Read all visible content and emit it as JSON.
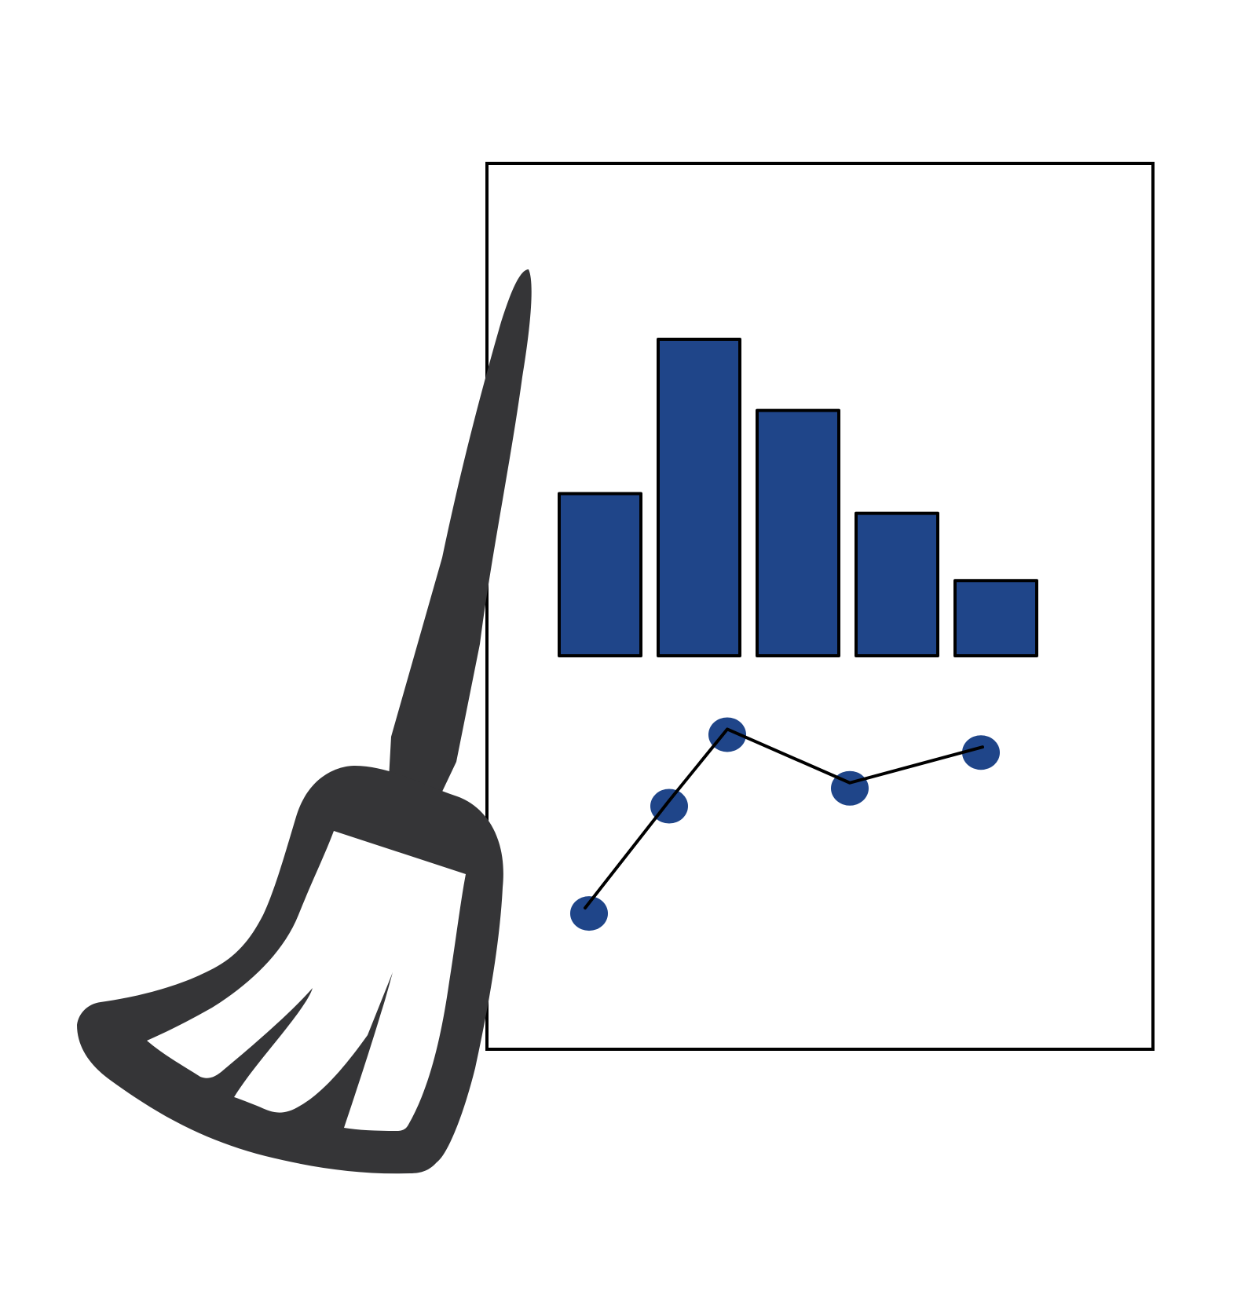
{
  "colors": {
    "background": "#ffffff",
    "frame": "#000000",
    "bar_fill": "#1F4589",
    "point_fill": "#1F4589",
    "line": "#000000",
    "broom": "#353537",
    "broom_inner": "#ffffff"
  },
  "icon": {
    "name": "broom-icon",
    "subject": "chart-document-icon"
  },
  "chart_data": [
    {
      "type": "bar",
      "categories": [
        "",
        "",
        "",
        "",
        ""
      ],
      "values": [
        4.1,
        8.0,
        6.2,
        3.6,
        1.9
      ],
      "ylim": [
        0,
        8.0
      ],
      "grid": false
    },
    {
      "type": "line",
      "x": [
        1,
        2,
        3,
        4,
        5
      ],
      "values": [
        1.0,
        3.4,
        5.0,
        3.8,
        4.6
      ],
      "ylim": [
        0,
        5.5
      ],
      "markers": true,
      "grid": false
    }
  ]
}
